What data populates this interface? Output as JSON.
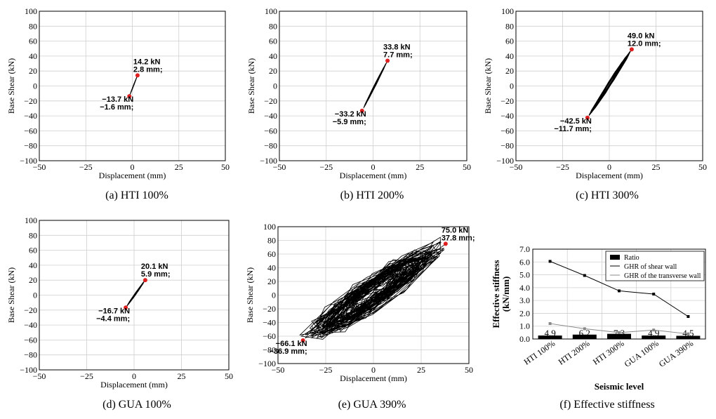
{
  "panels": [
    {
      "id": "a",
      "caption": "(a)  HTI 100%",
      "xlabel": "Displacement (mm)",
      "ylabel": "Base Shear (kN)",
      "xlim": [
        -50,
        50
      ],
      "ylim": [
        -100,
        100
      ],
      "xticks": [
        -50,
        -25,
        0,
        25,
        50
      ],
      "xtick_labels": [
        "−50",
        "−25",
        "0",
        "25",
        "50"
      ],
      "yticks": [
        100,
        80,
        60,
        40,
        20,
        0,
        -20,
        -40,
        -60,
        -80,
        -100
      ],
      "ytick_labels": [
        "100",
        "80",
        "60",
        "40",
        "20",
        "0",
        "−20",
        "−40",
        "−60",
        "−80",
        "−100"
      ],
      "peaks": [
        {
          "x": 2.8,
          "y": 14.2,
          "label1": "14.2 kN",
          "label2": "2.8 mm;",
          "pos": "upper-right"
        },
        {
          "x": -1.6,
          "y": -13.7,
          "label1": "−13.7 kN",
          "label2": "−1.6 mm;",
          "pos": "lower-left"
        }
      ],
      "spread": 1.0
    },
    {
      "id": "b",
      "caption": "(b)  HTI 200%",
      "xlabel": "Displacement (mm)",
      "ylabel": "Base Shear (kN)",
      "xlim": [
        -50,
        50
      ],
      "ylim": [
        -100,
        100
      ],
      "xticks": [
        -50,
        -25,
        0,
        25,
        50
      ],
      "xtick_labels": [
        "−50",
        "−25",
        "0",
        "25",
        "50"
      ],
      "yticks": [
        100,
        80,
        60,
        40,
        20,
        0,
        -20,
        -40,
        -60,
        -80,
        -100
      ],
      "ytick_labels": [
        "100",
        "80",
        "60",
        "40",
        "20",
        "0",
        "−20",
        "−40",
        "−60",
        "−80",
        "−100"
      ],
      "peaks": [
        {
          "x": 7.7,
          "y": 33.8,
          "label1": "33.8 kN",
          "label2": "7.7 mm;",
          "pos": "upper-right"
        },
        {
          "x": -5.9,
          "y": -33.2,
          "label1": "−33.2 kN",
          "label2": "−5.9 mm;",
          "pos": "lower-left"
        }
      ],
      "spread": 2.0
    },
    {
      "id": "c",
      "caption": "(c)  HTI 300%",
      "xlabel": "Displacement (mm)",
      "ylabel": "Base Shear (kN)",
      "xlim": [
        -50,
        50
      ],
      "ylim": [
        -100,
        100
      ],
      "xticks": [
        -50,
        -25,
        0,
        25,
        50
      ],
      "xtick_labels": [
        "−50",
        "−25",
        "0",
        "25",
        "50"
      ],
      "yticks": [
        100,
        80,
        60,
        40,
        20,
        0,
        -20,
        -40,
        -60,
        -80,
        -100
      ],
      "ytick_labels": [
        "100",
        "80",
        "60",
        "40",
        "20",
        "0",
        "−20",
        "−40",
        "−60",
        "−80",
        "−100"
      ],
      "peaks": [
        {
          "x": 12.0,
          "y": 49.0,
          "label1": "49.0 kN",
          "label2": "12.0 mm;",
          "pos": "upper-right"
        },
        {
          "x": -11.7,
          "y": -42.5,
          "label1": "−42.5 kN",
          "label2": "−11.7 mm;",
          "pos": "lower-left"
        }
      ],
      "spread": 4.0
    },
    {
      "id": "d",
      "caption": "(d)  GUA 100%",
      "xlabel": "Displacement (mm)",
      "ylabel": "Base Shear (kN)",
      "xlim": [
        -50,
        50
      ],
      "ylim": [
        -100,
        100
      ],
      "xticks": [
        -50,
        -25,
        0,
        25,
        50
      ],
      "xtick_labels": [
        "−50",
        "−25",
        "0",
        "25",
        "50"
      ],
      "yticks": [
        100,
        80,
        60,
        40,
        20,
        0,
        -20,
        -40,
        -60,
        -80,
        -100
      ],
      "ytick_labels": [
        "100",
        "80",
        "60",
        "40",
        "20",
        "0",
        "−20",
        "−40",
        "−60",
        "−80",
        "−100"
      ],
      "peaks": [
        {
          "x": 5.9,
          "y": 20.1,
          "label1": "20.1 kN",
          "label2": "5.9 mm;",
          "pos": "upper-right"
        },
        {
          "x": -4.4,
          "y": -16.7,
          "label1": "−16.7 kN",
          "label2": "−4.4 mm;",
          "pos": "lower-left"
        }
      ],
      "spread": 1.5
    },
    {
      "id": "e",
      "caption": "(e)  GUA 390%",
      "xlabel": "Displacement (mm)",
      "ylabel": "Base Shear (kN)",
      "xlim": [
        -50,
        50
      ],
      "ylim": [
        -100,
        100
      ],
      "xticks": [
        -50,
        -25,
        0,
        25,
        50
      ],
      "xtick_labels": [
        "−50",
        "−25",
        "0",
        "25",
        "50"
      ],
      "yticks": [
        100,
        80,
        60,
        40,
        20,
        0,
        -20,
        -40,
        -60,
        -80,
        -100
      ],
      "ytick_labels": [
        "100",
        "80",
        "60",
        "40",
        "20",
        "0",
        "−20",
        "−40",
        "−60",
        "−80",
        "−100"
      ],
      "peaks": [
        {
          "x": 37.8,
          "y": 75.0,
          "label1": "75.0 kN",
          "label2": "37.8 mm;",
          "pos": "upper-right"
        },
        {
          "x": -36.9,
          "y": -66.1,
          "label1": "−66.1 kN",
          "label2": "−36.9 mm;",
          "pos": "lower-left"
        }
      ],
      "spread": 22.0
    }
  ],
  "stiffness": {
    "caption": "(f)  Effective stiffness",
    "ylabel_line1": "Effective stiffness",
    "ylabel_line2": "(kN/mm)",
    "xlabel": "Seismic  level",
    "yticks": [
      "7.0",
      "6.0",
      "5.0",
      "4.0",
      "3.0",
      "2.0",
      "1.0",
      "0.0"
    ],
    "ymax": 7.0,
    "categories": [
      "HTI 100%",
      "HTI 200%",
      "HTI 300%",
      "GUA 100%",
      "GUA 390%"
    ],
    "legend": [
      "Ratio",
      "GHR of shear wall",
      "GHR of the transverse wall"
    ],
    "ratio_labels": [
      "4.9",
      "6.2",
      "7.3",
      "4.9",
      "4.5"
    ],
    "colors": {
      "shear": "#000000",
      "transverse": "#888888",
      "bar": "#000000",
      "peak": "#e02020"
    }
  },
  "chart_data": [
    {
      "type": "scatter",
      "title": "(a) HTI 100%",
      "xlabel": "Displacement (mm)",
      "ylabel": "Base Shear (kN)",
      "xlim": [
        -50,
        50
      ],
      "ylim": [
        -100,
        100
      ],
      "series": [
        {
          "name": "peaks",
          "x": [
            2.8,
            -1.6
          ],
          "y": [
            14.2,
            -13.7
          ]
        }
      ]
    },
    {
      "type": "scatter",
      "title": "(b) HTI 200%",
      "xlabel": "Displacement (mm)",
      "ylabel": "Base Shear (kN)",
      "xlim": [
        -50,
        50
      ],
      "ylim": [
        -100,
        100
      ],
      "series": [
        {
          "name": "peaks",
          "x": [
            7.7,
            -5.9
          ],
          "y": [
            33.8,
            -33.2
          ]
        }
      ]
    },
    {
      "type": "scatter",
      "title": "(c) HTI 300%",
      "xlabel": "Displacement (mm)",
      "ylabel": "Base Shear (kN)",
      "xlim": [
        -50,
        50
      ],
      "ylim": [
        -100,
        100
      ],
      "series": [
        {
          "name": "peaks",
          "x": [
            12.0,
            -11.7
          ],
          "y": [
            49.0,
            -42.5
          ]
        }
      ]
    },
    {
      "type": "scatter",
      "title": "(d) GUA 100%",
      "xlabel": "Displacement (mm)",
      "ylabel": "Base Shear (kN)",
      "xlim": [
        -50,
        50
      ],
      "ylim": [
        -100,
        100
      ],
      "series": [
        {
          "name": "peaks",
          "x": [
            5.9,
            -4.4
          ],
          "y": [
            20.1,
            -16.7
          ]
        }
      ]
    },
    {
      "type": "scatter",
      "title": "(e) GUA 390%",
      "xlabel": "Displacement (mm)",
      "ylabel": "Base Shear (kN)",
      "xlim": [
        -50,
        50
      ],
      "ylim": [
        -100,
        100
      ],
      "series": [
        {
          "name": "peaks",
          "x": [
            37.8,
            -36.9
          ],
          "y": [
            75.0,
            -66.1
          ]
        }
      ]
    },
    {
      "type": "bar",
      "title": "(f) Effective stiffness",
      "xlabel": "Seismic level",
      "ylabel": "Effective stiffness (kN/mm)",
      "ylim": [
        0,
        7
      ],
      "categories": [
        "HTI 100%",
        "HTI 200%",
        "HTI 300%",
        "GUA 100%",
        "GUA 390%"
      ],
      "series": [
        {
          "name": "Ratio",
          "values": [
            4.9,
            6.2,
            7.3,
            4.9,
            4.5
          ]
        },
        {
          "name": "GHR of shear wall",
          "values": [
            6.05,
            4.95,
            3.75,
            3.5,
            1.75
          ]
        },
        {
          "name": "GHR of the transverse wall",
          "values": [
            1.2,
            0.8,
            0.5,
            0.7,
            0.4
          ]
        }
      ]
    }
  ]
}
